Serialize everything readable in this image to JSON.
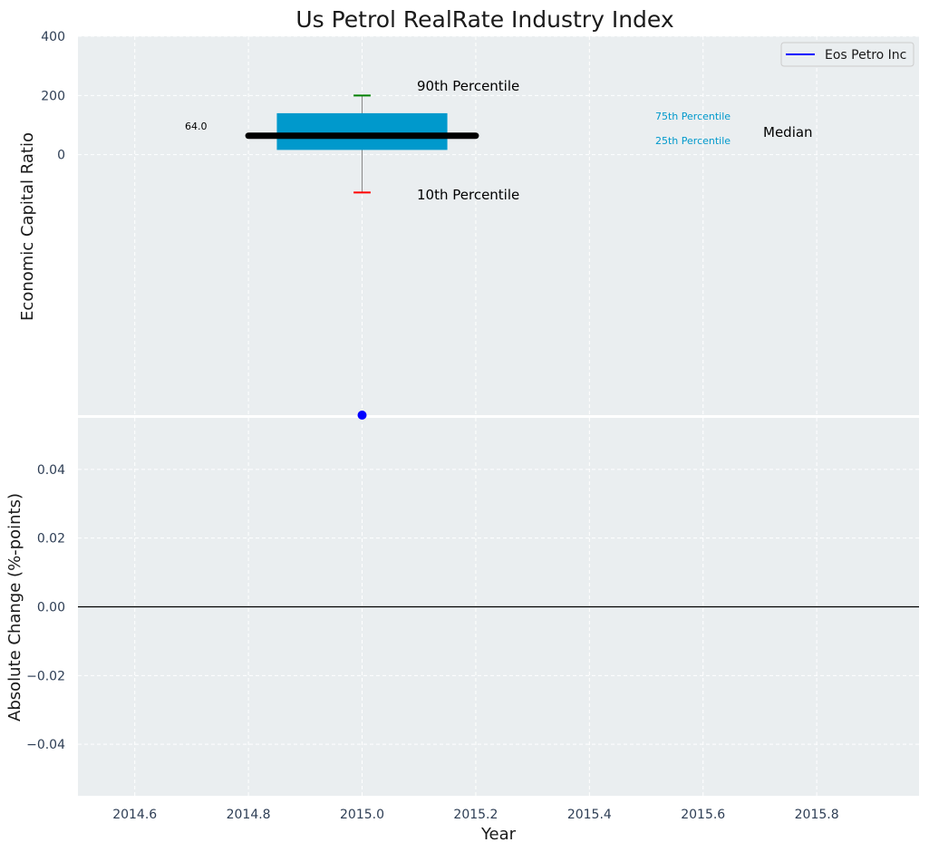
{
  "chart_data": [
    {
      "type": "box",
      "title": "Us Petrol RealRate Industry Index",
      "xlabel": "",
      "ylabel": "Economic Capital Ratio",
      "ylim": [
        -880,
        400
      ],
      "yticks": [
        0,
        200,
        400
      ],
      "xlim": [
        2014.5,
        2015.98
      ],
      "grid": true,
      "box": {
        "x": 2015.0,
        "p10": -128,
        "p25": 16,
        "median": 64,
        "p75": 140,
        "p90": 200,
        "median_label": "64.0"
      },
      "series": [
        {
          "name": "Eos Petro Inc",
          "x": [
            2015.0
          ],
          "y": [
            -880
          ],
          "color": "#0000ff"
        }
      ],
      "annotations": {
        "p90": "90th Percentile",
        "p10": "10th Percentile",
        "legend_p75": "75th Percentile",
        "legend_p25": "25th Percentile",
        "legend_median": "Median"
      },
      "legend_position": "top-right"
    },
    {
      "type": "line",
      "title": "",
      "xlabel": "Year",
      "ylabel": "Absolute Change (%-points)",
      "ylim": [
        -0.055,
        0.055
      ],
      "yticks": [
        -0.04,
        -0.02,
        0.0,
        0.02,
        0.04
      ],
      "ytick_labels": [
        "−0.04",
        "−0.02",
        "0.00",
        "0.02",
        "0.04"
      ],
      "xlim": [
        2014.5,
        2015.98
      ],
      "xticks": [
        2014.6,
        2014.8,
        2015.0,
        2015.2,
        2015.4,
        2015.6,
        2015.8
      ],
      "xtick_labels": [
        "2014.6",
        "2014.8",
        "2015.0",
        "2015.2",
        "2015.4",
        "2015.6",
        "2015.8"
      ],
      "reference_line_y": 0,
      "grid": true
    }
  ],
  "colors": {
    "panel_bg": "#eaeef0",
    "grid": "#ffffff",
    "box_fill": "#0099cc",
    "median_line": "#000000",
    "p90_cap": "#008000",
    "p10_cap": "#ff0000",
    "whisker": "#888888",
    "legend_percentile_text": "#0099cc",
    "series": "#0000ff"
  }
}
